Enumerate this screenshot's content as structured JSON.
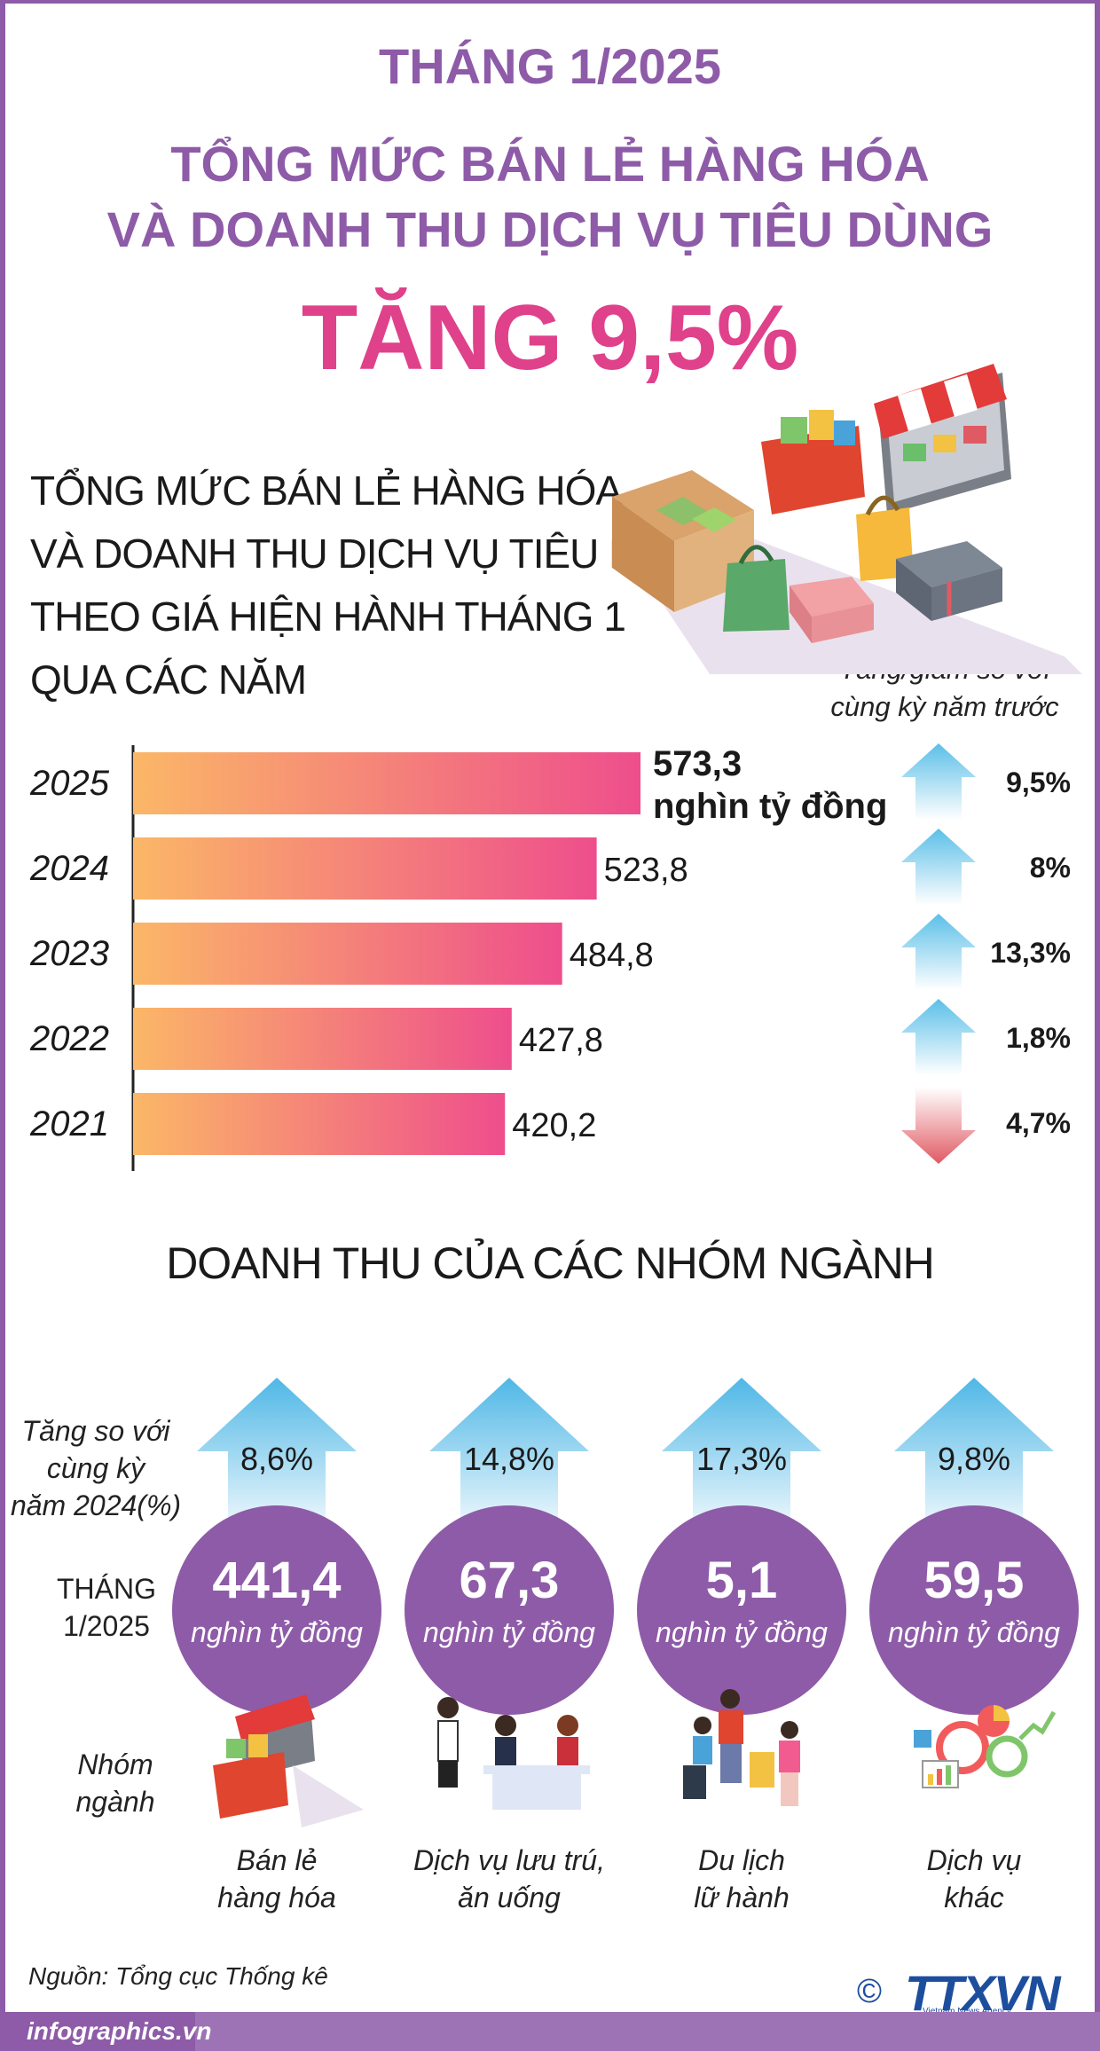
{
  "header": {
    "month": "THÁNG 1/2025",
    "title_line1": "TỔNG MỨC BÁN LẺ HÀNG HÓA",
    "title_line2": "VÀ DOANH THU DỊCH VỤ TIÊU DÙNG",
    "headline": "TĂNG 9,5%"
  },
  "subtitle": {
    "line1": "TỔNG MỨC BÁN LẺ HÀNG HÓA",
    "line2": "VÀ DOANH THU DỊCH VỤ TIÊU DÙNG",
    "line3": "THEO GIÁ HIỆN HÀNH THÁNG 1",
    "line4": "QUA CÁC NĂM"
  },
  "change_note": {
    "line1": "Tăng/giảm so với",
    "line2": "cùng kỳ năm trước"
  },
  "chart_data": {
    "type": "bar",
    "orientation": "horizontal",
    "categories": [
      "2025",
      "2024",
      "2023",
      "2022",
      "2021"
    ],
    "values": [
      573.3,
      523.8,
      484.8,
      427.8,
      420.2
    ],
    "value_labels": [
      "573,3",
      "523,8",
      "484,8",
      "427,8",
      "420,2"
    ],
    "unit_label": "nghìn tỷ đồng",
    "change": [
      {
        "label": "9,5%",
        "direction": "up"
      },
      {
        "label": "8%",
        "direction": "up"
      },
      {
        "label": "13,3%",
        "direction": "up"
      },
      {
        "label": "1,8%",
        "direction": "up"
      },
      {
        "label": "4,7%",
        "direction": "down"
      }
    ],
    "bar_color_start": "#fbb767",
    "bar_color_end": "#ee4e8c",
    "up_color": "#5bbfe8",
    "down_color": "#e05a63"
  },
  "groups": {
    "title": "DOANH THU CỦA CÁC NHÓM NGÀNH",
    "row_label_growth": [
      "Tăng so với",
      "cùng kỳ",
      "năm 2024(%)"
    ],
    "row_label_month": [
      "THÁNG",
      "1/2025"
    ],
    "row_label_group": [
      "Nhóm",
      "ngành"
    ],
    "unit": "nghìn tỷ đồng",
    "items": [
      {
        "value": "441,4",
        "growth": "8,6%",
        "name1": "Bán lẻ",
        "name2": "hàng hóa"
      },
      {
        "value": "67,3",
        "growth": "14,8%",
        "name1": "Dịch vụ lưu trú,",
        "name2": "ăn uống"
      },
      {
        "value": "5,1",
        "growth": "17,3%",
        "name1": "Du lịch",
        "name2": "lữ hành"
      },
      {
        "value": "59,5",
        "growth": "9,8%",
        "name1": "Dịch vụ",
        "name2": "khác"
      }
    ],
    "circle_color": "#8e5ba8"
  },
  "footer": {
    "source": "Nguồn: Tổng cục Thống kê",
    "site": "infographics.vn",
    "logo": "TTXVN",
    "logo_sub": "Vietnam News Agency",
    "copyright": "©"
  }
}
